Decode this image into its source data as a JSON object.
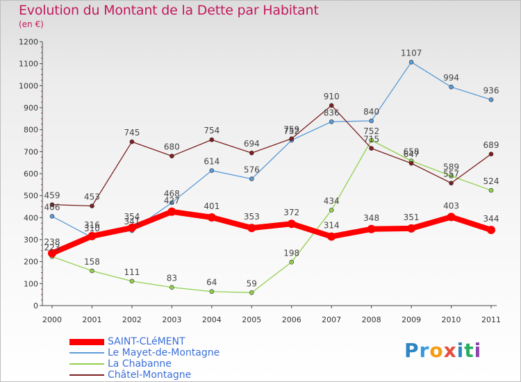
{
  "chart_data": {
    "type": "line",
    "title": "Evolution du Montant de la Dette par Habitant",
    "subtitle": "(en €)",
    "xlabel": "",
    "ylabel": "",
    "ylim": [
      0,
      1200
    ],
    "yticks": [
      0,
      100,
      200,
      300,
      400,
      500,
      600,
      700,
      800,
      900,
      1000,
      1100,
      1200
    ],
    "categories": [
      "2000",
      "2001",
      "2002",
      "2003",
      "2004",
      "2005",
      "2006",
      "2007",
      "2008",
      "2009",
      "2010",
      "2011"
    ],
    "grid": false,
    "legend_position": "bottom-left",
    "series": [
      {
        "name": "SAINT-CLéMENT",
        "color": "#ff0000",
        "emphasis": true,
        "values": [
          238,
          316,
          354,
          427,
          401,
          353,
          372,
          314,
          348,
          351,
          403,
          344
        ]
      },
      {
        "name": "Le Mayet-de-Montagne",
        "color": "#5b9bd5",
        "emphasis": false,
        "values": [
          406,
          310,
          341,
          468,
          614,
          576,
          752,
          836,
          840,
          1107,
          994,
          936
        ]
      },
      {
        "name": "La Chabanne",
        "color": "#92d050",
        "emphasis": false,
        "values": [
          223,
          158,
          111,
          83,
          64,
          59,
          198,
          434,
          752,
          658,
          589,
          524
        ]
      },
      {
        "name": "Châtel-Montagne",
        "color": "#7b1f1f",
        "emphasis": false,
        "values": [
          459,
          453,
          745,
          680,
          754,
          694,
          759,
          910,
          715,
          647,
          557,
          689
        ]
      }
    ]
  },
  "logo": {
    "letters": [
      "P",
      "r",
      "o",
      "x",
      "i",
      "t",
      "i"
    ],
    "colors": [
      "#2e86c1",
      "#3498db",
      "#f39c12",
      "#e74c3c",
      "#2e86c1",
      "#27ae60",
      "#8e44ad"
    ]
  }
}
